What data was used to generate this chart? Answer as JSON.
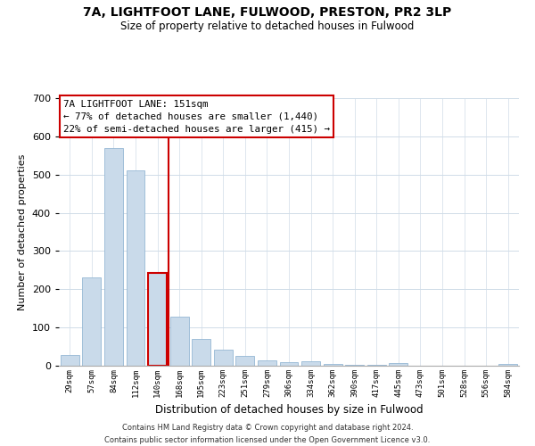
{
  "title": "7A, LIGHTFOOT LANE, FULWOOD, PRESTON, PR2 3LP",
  "subtitle": "Size of property relative to detached houses in Fulwood",
  "xlabel": "Distribution of detached houses by size in Fulwood",
  "ylabel": "Number of detached properties",
  "bar_labels": [
    "29sqm",
    "57sqm",
    "84sqm",
    "112sqm",
    "140sqm",
    "168sqm",
    "195sqm",
    "223sqm",
    "251sqm",
    "279sqm",
    "306sqm",
    "334sqm",
    "362sqm",
    "390sqm",
    "417sqm",
    "445sqm",
    "473sqm",
    "501sqm",
    "528sqm",
    "556sqm",
    "584sqm"
  ],
  "bar_values": [
    28,
    232,
    570,
    510,
    242,
    128,
    70,
    42,
    26,
    13,
    10,
    11,
    4,
    3,
    2,
    8,
    1,
    0,
    0,
    0,
    5
  ],
  "bar_color": "#c9daea",
  "bar_edge_color": "#96b8d4",
  "marker_index": 4,
  "marker_color": "#cc0000",
  "ylim": [
    0,
    700
  ],
  "yticks": [
    0,
    100,
    200,
    300,
    400,
    500,
    600,
    700
  ],
  "annotation_title": "7A LIGHTFOOT LANE: 151sqm",
  "annotation_line1": "← 77% of detached houses are smaller (1,440)",
  "annotation_line2": "22% of semi-detached houses are larger (415) →",
  "annotation_box_color": "#ffffff",
  "annotation_box_edge": "#cc0000",
  "footer_line1": "Contains HM Land Registry data © Crown copyright and database right 2024.",
  "footer_line2": "Contains public sector information licensed under the Open Government Licence v3.0.",
  "background_color": "#ffffff",
  "grid_color": "#d0dce8"
}
